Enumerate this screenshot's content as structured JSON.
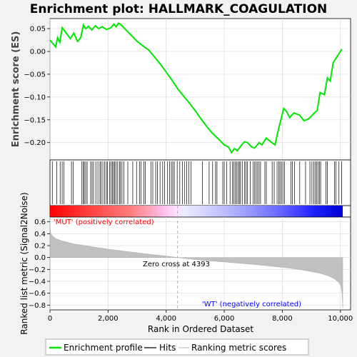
{
  "chart_data": [
    {
      "type": "line",
      "title": "Enrichment plot: HALLMARK_COAGULATION",
      "ylabel": "Enrichment score (ES)",
      "xlim": [
        0,
        10350
      ],
      "ylim": [
        -0.238,
        0.072
      ],
      "yticks": [
        0.05,
        0.0,
        -0.05,
        -0.1,
        -0.15,
        -0.2
      ],
      "ytick_labels": [
        "0.05",
        "0.00",
        "−0.05",
        "−0.10",
        "−0.15",
        "−0.20"
      ],
      "grid": true,
      "color": "#00e600",
      "series": [
        {
          "name": "Enrichment profile",
          "x": [
            0,
            200,
            260,
            340,
            420,
            560,
            700,
            820,
            950,
            1060,
            1150,
            1230,
            1330,
            1440,
            1560,
            1680,
            1800,
            1950,
            2100,
            2200,
            2280,
            2360,
            2450,
            2600,
            2800,
            3000,
            3200,
            3400,
            3600,
            3800,
            4000,
            4200,
            4400,
            4600,
            4800,
            5000,
            5200,
            5400,
            5600,
            5800,
            6000,
            6150,
            6250,
            6350,
            6450,
            6600,
            6700,
            6800,
            6950,
            7050,
            7200,
            7300,
            7450,
            7600,
            7750,
            7850,
            7950,
            8050,
            8150,
            8250,
            8400,
            8600,
            8750,
            8900,
            9000,
            9100,
            9200,
            9300,
            9450,
            9550,
            9650,
            9750,
            9850,
            9950,
            10050
          ],
          "y": [
            0.025,
            0.01,
            0.03,
            0.02,
            0.052,
            0.04,
            0.028,
            0.04,
            0.022,
            0.03,
            0.058,
            0.05,
            0.055,
            0.047,
            0.056,
            0.05,
            0.054,
            0.048,
            0.052,
            0.06,
            0.054,
            0.062,
            0.058,
            0.048,
            0.035,
            0.022,
            0.012,
            0.003,
            -0.012,
            -0.028,
            -0.045,
            -0.063,
            -0.082,
            -0.098,
            -0.113,
            -0.13,
            -0.148,
            -0.165,
            -0.18,
            -0.192,
            -0.205,
            -0.21,
            -0.222,
            -0.213,
            -0.218,
            -0.205,
            -0.198,
            -0.2,
            -0.21,
            -0.212,
            -0.2,
            -0.205,
            -0.19,
            -0.198,
            -0.205,
            -0.175,
            -0.15,
            -0.125,
            -0.132,
            -0.145,
            -0.135,
            -0.14,
            -0.152,
            -0.148,
            -0.142,
            -0.135,
            -0.13,
            -0.09,
            -0.095,
            -0.058,
            -0.065,
            -0.025,
            -0.015,
            -0.005,
            0.005
          ]
        }
      ]
    },
    {
      "type": "line",
      "name": "hits",
      "series": [
        {
          "name": "Hits",
          "x": [
            80,
            230,
            350,
            420,
            480,
            740,
            800,
            1100,
            1150,
            1180,
            1230,
            1280,
            1400,
            1450,
            1500,
            1580,
            1650,
            1720,
            1760,
            1820,
            1880,
            1940,
            1980,
            2050,
            2100,
            2150,
            2190,
            2230,
            2270,
            2330,
            2390,
            2430,
            2480,
            2540,
            2680,
            2850,
            2980,
            3080,
            3130,
            3230,
            3280,
            3480,
            3540,
            3640,
            3700,
            3790,
            3880,
            3950,
            4050,
            4120,
            4180,
            4230,
            4280,
            4380,
            4470,
            4560,
            4640,
            4710,
            4780,
            4860,
            5250,
            5480,
            5600,
            5700,
            5750,
            5950,
            6000,
            6080,
            6200,
            6280,
            6330,
            6380,
            6430,
            6480,
            6520,
            6560,
            6620,
            6700,
            6750,
            6800,
            6900,
            7000,
            7050,
            7100,
            7150,
            7200,
            7250,
            7400,
            7450,
            7650,
            7720,
            7820,
            7880,
            7920,
            7970,
            8020,
            8080,
            8300,
            8350,
            8420,
            8600,
            8800,
            8950,
            9020,
            9080,
            9130,
            9180,
            9230,
            9280,
            9320,
            9500,
            9550,
            9800,
            9850,
            9950,
            10040
          ]
        }
      ]
    },
    {
      "type": "area",
      "ylabel": "Ranked list metric (Signal2Noise)",
      "xlabel": "Rank in Ordered Dataset",
      "xlim": [
        0,
        10350
      ],
      "ylim": [
        -0.88,
        0.68
      ],
      "yticks": [
        0.6,
        0.4,
        0.2,
        0.0,
        -0.2,
        -0.4,
        -0.6,
        -0.8
      ],
      "ytick_labels": [
        "0.6",
        "0.4",
        "0.2",
        "0.0",
        "−0.2",
        "−0.4",
        "−0.6",
        "−0.8"
      ],
      "xticks": [
        0,
        2000,
        4000,
        6000,
        8000,
        10000
      ],
      "xtick_labels": [
        "0",
        "2,000",
        "4,000",
        "6,000",
        "8,000",
        "10,000"
      ],
      "grid": true,
      "zero_cross": 4393,
      "series": [
        {
          "name": "Ranking metric scores",
          "x": [
            0,
            20,
            60,
            120,
            200,
            350,
            500,
            800,
            1200,
            1600,
            2000,
            2500,
            3000,
            3500,
            4000,
            4393,
            5000,
            5500,
            6000,
            6500,
            7000,
            7500,
            8000,
            8500,
            9000,
            9300,
            9600,
            9800,
            9950,
            10020,
            10060,
            10080
          ],
          "y": [
            0.55,
            0.42,
            0.38,
            0.35,
            0.32,
            0.29,
            0.27,
            0.23,
            0.2,
            0.17,
            0.14,
            0.11,
            0.08,
            0.05,
            0.025,
            0.0,
            -0.035,
            -0.055,
            -0.075,
            -0.095,
            -0.115,
            -0.14,
            -0.165,
            -0.195,
            -0.235,
            -0.265,
            -0.31,
            -0.36,
            -0.42,
            -0.48,
            -0.62,
            -0.84
          ]
        }
      ],
      "annotations": [
        {
          "text": "'MUT' (positively correlated)",
          "color": "#ff0000"
        },
        {
          "text": "Zero cross at 4393",
          "color": "#000000"
        },
        {
          "text": "'WT' (negatively correlated)",
          "color": "#0000ff"
        }
      ]
    }
  ],
  "legend": {
    "placement": "bottom",
    "items": [
      {
        "label": "Enrichment profile",
        "color": "#00e600"
      },
      {
        "label": "Hits",
        "color": "#000000"
      },
      {
        "label": "Ranking metric scores",
        "color": "#c0c0c0"
      }
    ]
  },
  "colors": {
    "profile": "#00e600",
    "metric": "#c0c0c0",
    "positive": "#ff0000",
    "negative": "#0000ff"
  }
}
